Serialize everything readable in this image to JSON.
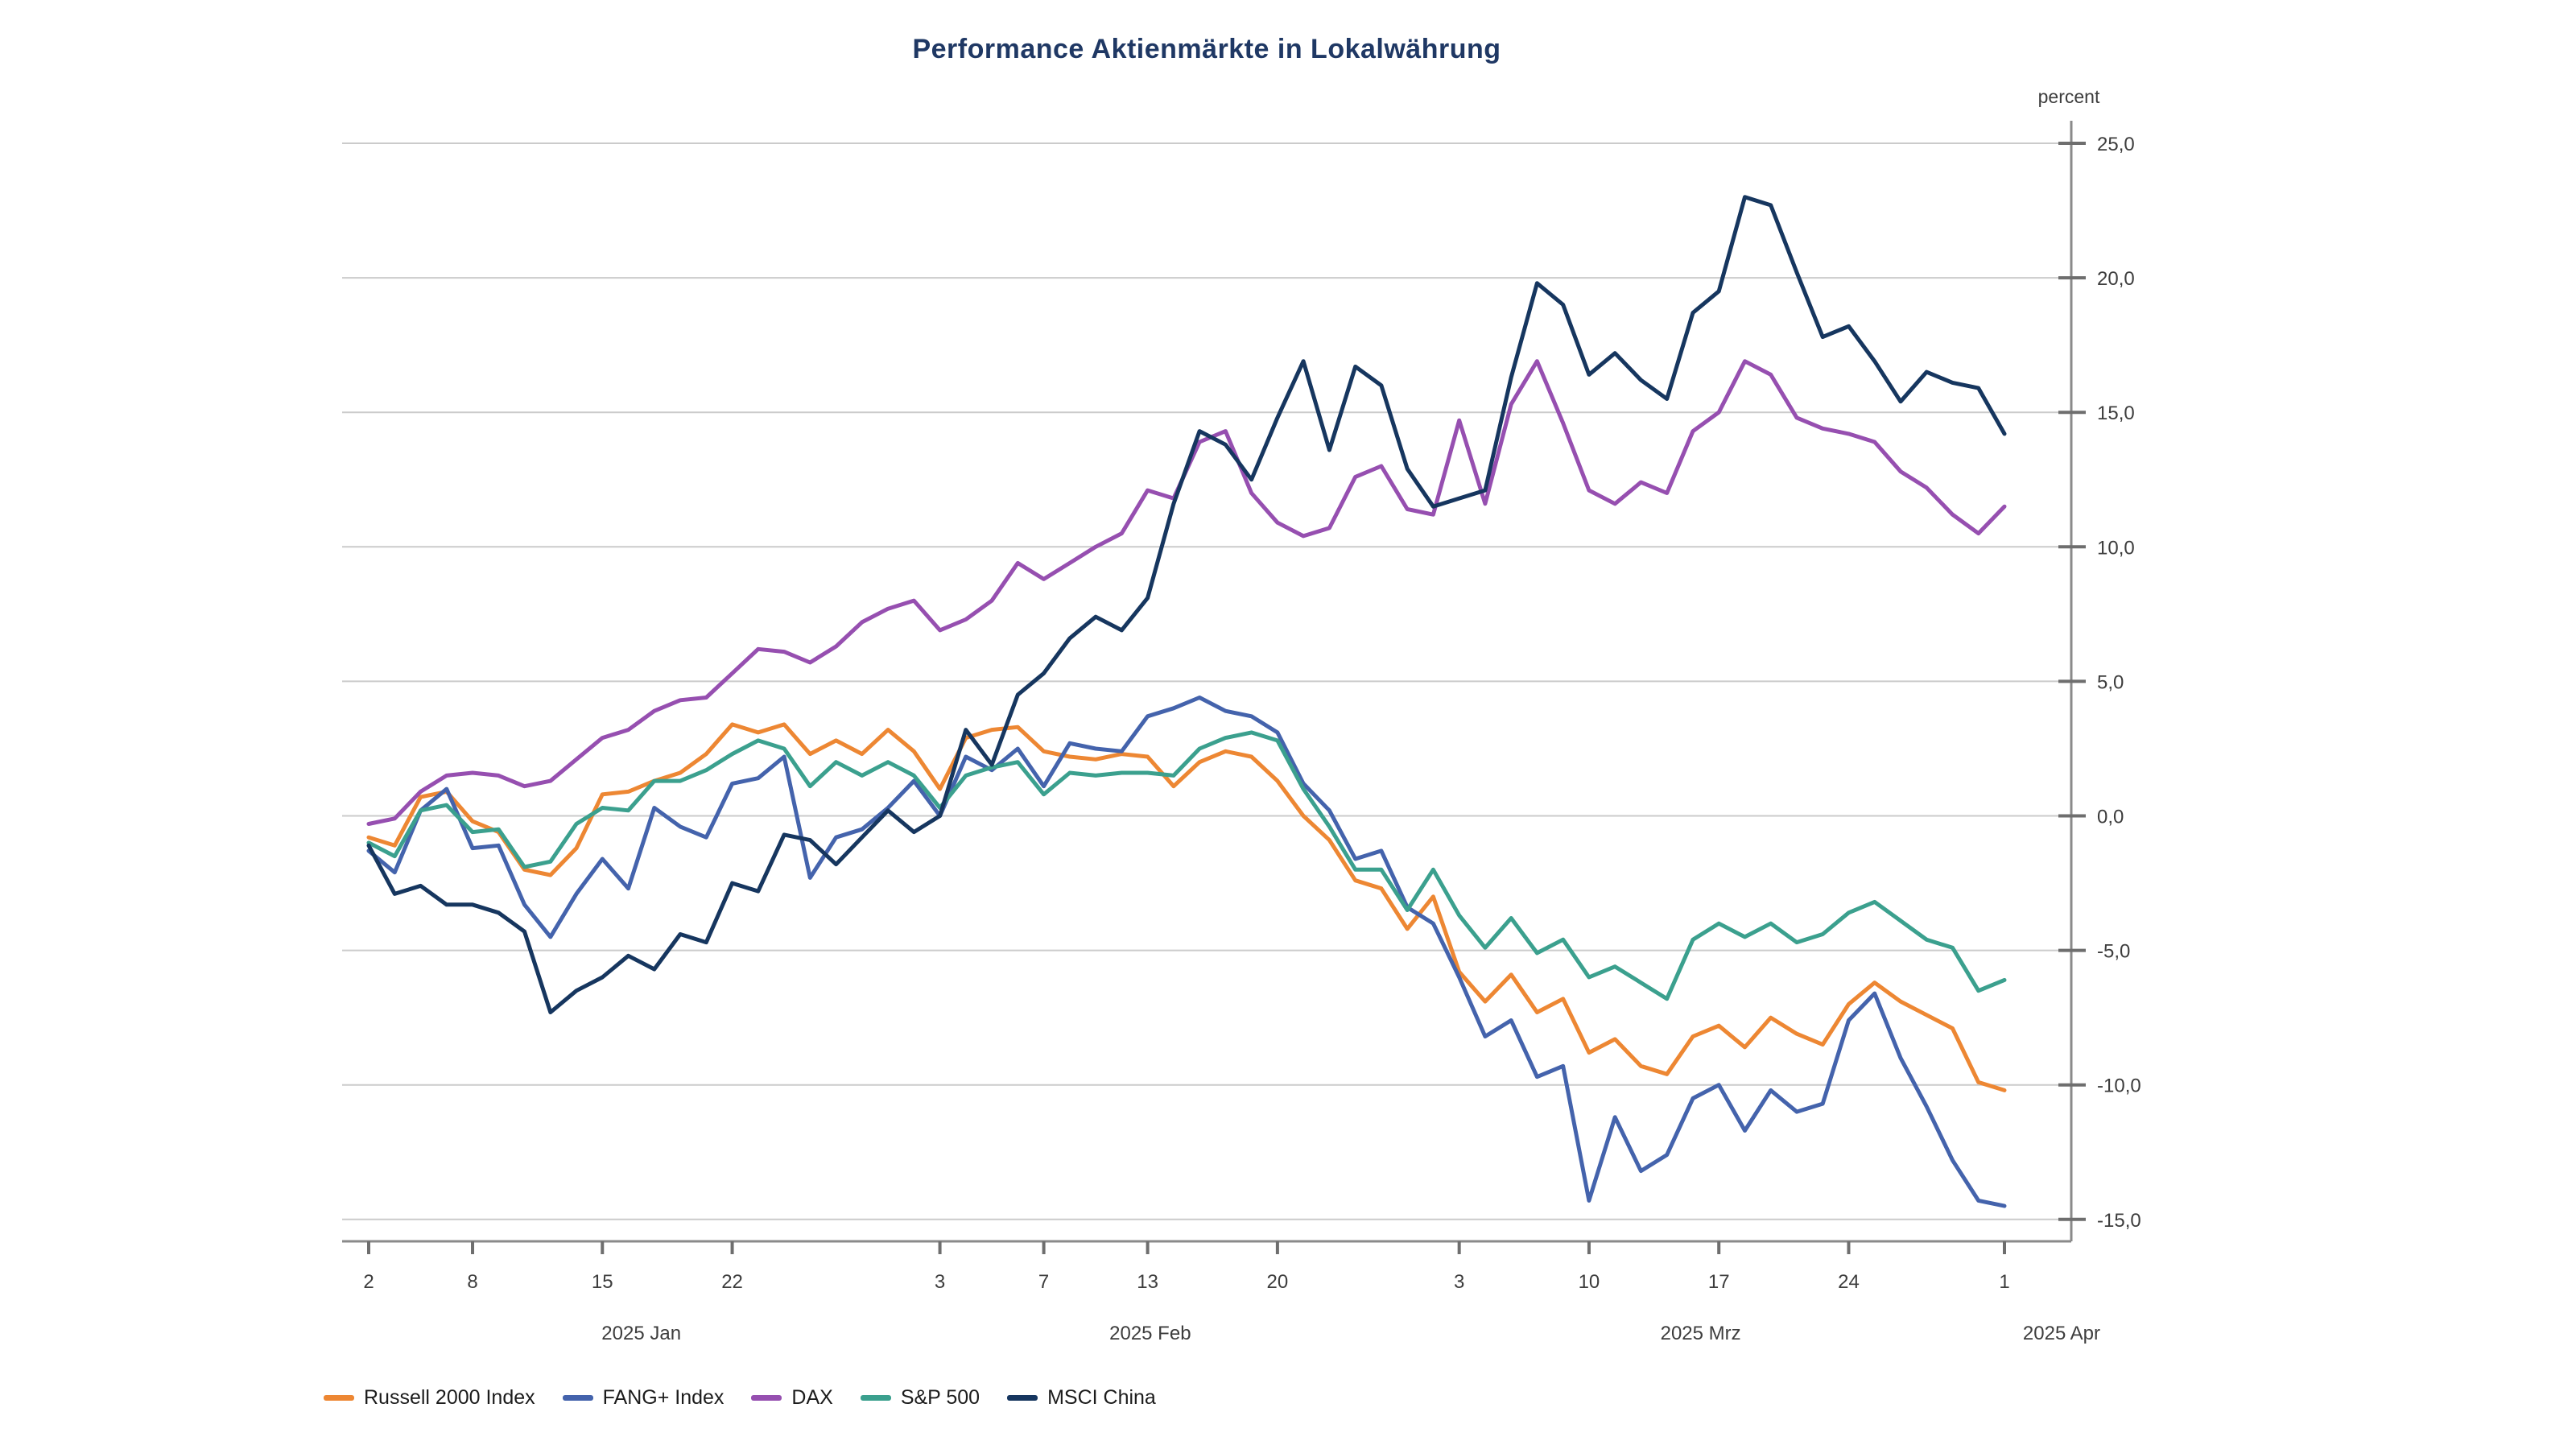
{
  "page": {
    "background": "#FFFFFF"
  },
  "header": {
    "title": "Performance Aktienmärkte in Lokalwährung",
    "title_color": "#1F3864"
  },
  "y_axis": {
    "unit_label": "percent",
    "min": -15,
    "max": 25,
    "step": 5,
    "tick_labels": [
      "25,0",
      "20,0",
      "15,0",
      "10,0",
      "5,0",
      "0,0",
      "-5,0",
      "-10,0",
      "-15,0"
    ]
  },
  "x_axis": {
    "day_ticks": [
      {
        "label": "2",
        "bd": 0
      },
      {
        "label": "8",
        "bd": 4
      },
      {
        "label": "15",
        "bd": 9
      },
      {
        "label": "22",
        "bd": 14
      },
      {
        "label": "3",
        "bd": 22
      },
      {
        "label": "7",
        "bd": 26
      },
      {
        "label": "13",
        "bd": 30
      },
      {
        "label": "20",
        "bd": 35
      },
      {
        "label": "3",
        "bd": 42
      },
      {
        "label": "10",
        "bd": 47
      },
      {
        "label": "17",
        "bd": 52
      },
      {
        "label": "24",
        "bd": 57
      },
      {
        "label": "1",
        "bd": 63
      }
    ],
    "month_labels": [
      {
        "label": "2025 Jan",
        "bd_center": 10.5
      },
      {
        "label": "2025 Feb",
        "bd_center": 30.1
      },
      {
        "label": "2025 Mrz",
        "bd_center": 51.3
      },
      {
        "label": "2025 Apr",
        "bd_center": 65.2
      }
    ]
  },
  "legend": [
    {
      "label": "Russell 2000 Index",
      "color": "#ED8733"
    },
    {
      "label": "FANG+ Index",
      "color": "#4463AC"
    },
    {
      "label": "DAX",
      "color": "#964FB0"
    },
    {
      "label": "S&P 500",
      "color": "#3BA08E"
    },
    {
      "label": "MSCI China",
      "color": "#16365F"
    }
  ],
  "chart_data": {
    "type": "line",
    "title": "Performance Aktienmärkte in Lokalwährung",
    "ylabel": "percent",
    "ylim": [
      -15,
      25
    ],
    "ytick_step": 5,
    "grid": "horizontal",
    "legend_position": "bottom-left",
    "x_unit": "business_days",
    "dates": [
      "2025-01-02",
      "2025-01-03",
      "2025-01-06",
      "2025-01-07",
      "2025-01-08",
      "2025-01-09",
      "2025-01-10",
      "2025-01-13",
      "2025-01-14",
      "2025-01-15",
      "2025-01-16",
      "2025-01-17",
      "2025-01-20",
      "2025-01-21",
      "2025-01-22",
      "2025-01-23",
      "2025-01-24",
      "2025-01-27",
      "2025-01-28",
      "2025-01-29",
      "2025-01-30",
      "2025-01-31",
      "2025-02-03",
      "2025-02-04",
      "2025-02-05",
      "2025-02-06",
      "2025-02-07",
      "2025-02-10",
      "2025-02-11",
      "2025-02-12",
      "2025-02-13",
      "2025-02-14",
      "2025-02-17",
      "2025-02-18",
      "2025-02-19",
      "2025-02-20",
      "2025-02-21",
      "2025-02-24",
      "2025-02-25",
      "2025-02-26",
      "2025-02-27",
      "2025-02-28",
      "2025-03-03",
      "2025-03-04",
      "2025-03-05",
      "2025-03-06",
      "2025-03-07",
      "2025-03-10",
      "2025-03-11",
      "2025-03-12",
      "2025-03-13",
      "2025-03-14",
      "2025-03-17",
      "2025-03-18",
      "2025-03-19",
      "2025-03-20",
      "2025-03-21",
      "2025-03-24",
      "2025-03-25",
      "2025-03-26",
      "2025-03-27",
      "2025-03-28",
      "2025-03-31",
      "2025-04-01"
    ],
    "series": [
      {
        "name": "Russell 2000 Index",
        "color": "#ED8733",
        "values": [
          -0.8,
          -1.1,
          0.7,
          0.9,
          -0.2,
          -0.6,
          -2.0,
          -2.2,
          -1.2,
          0.8,
          0.9,
          1.3,
          1.6,
          2.3,
          3.4,
          3.1,
          3.4,
          2.3,
          2.8,
          2.3,
          3.2,
          2.4,
          1.0,
          2.9,
          3.2,
          3.3,
          2.4,
          2.2,
          2.1,
          2.3,
          2.2,
          1.1,
          2.0,
          2.4,
          2.2,
          1.3,
          0.0,
          -0.9,
          -2.4,
          -2.7,
          -4.2,
          -3.0,
          -5.8,
          -6.9,
          -5.9,
          -7.3,
          -6.8,
          -8.8,
          -8.3,
          -9.3,
          -9.6,
          -8.2,
          -7.8,
          -8.6,
          -7.5,
          -8.1,
          -8.5,
          -7.0,
          -6.2,
          -6.9,
          -7.4,
          -7.9,
          -9.9,
          -10.2
        ]
      },
      {
        "name": "FANG+ Index",
        "color": "#4463AC",
        "values": [
          -1.3,
          -2.1,
          0.2,
          1.0,
          -1.2,
          -1.1,
          -3.3,
          -4.5,
          -2.9,
          -1.6,
          -2.7,
          0.3,
          -0.4,
          -0.8,
          1.2,
          1.4,
          2.2,
          -2.3,
          -0.8,
          -0.5,
          0.3,
          1.3,
          0.0,
          2.2,
          1.7,
          2.5,
          1.1,
          2.7,
          2.5,
          2.4,
          3.7,
          4.0,
          4.4,
          3.9,
          3.7,
          3.1,
          1.2,
          0.2,
          -1.6,
          -1.3,
          -3.4,
          -4.0,
          -6.0,
          -8.2,
          -7.6,
          -9.7,
          -9.3,
          -14.3,
          -11.2,
          -13.2,
          -12.6,
          -10.5,
          -10.0,
          -11.7,
          -10.2,
          -11.0,
          -10.7,
          -7.6,
          -6.6,
          -9.0,
          -10.8,
          -12.8,
          -14.3,
          -14.5
        ]
      },
      {
        "name": "DAX",
        "color": "#964FB0",
        "values": [
          -0.3,
          -0.1,
          0.9,
          1.5,
          1.6,
          1.5,
          1.1,
          1.3,
          2.1,
          2.9,
          3.2,
          3.9,
          4.3,
          4.4,
          5.3,
          6.2,
          6.1,
          5.7,
          6.3,
          7.2,
          7.7,
          8.0,
          6.9,
          7.3,
          8.0,
          9.4,
          8.8,
          9.4,
          10.0,
          10.5,
          12.1,
          11.8,
          13.9,
          14.3,
          12.0,
          10.9,
          10.4,
          10.7,
          12.6,
          13.0,
          11.4,
          11.2,
          14.7,
          11.6,
          15.3,
          16.9,
          14.6,
          12.1,
          11.6,
          12.4,
          12.0,
          14.3,
          15.0,
          16.9,
          16.4,
          14.8,
          14.4,
          14.2,
          13.9,
          12.8,
          12.2,
          11.2,
          10.5,
          11.5
        ]
      },
      {
        "name": "S&P 500",
        "color": "#3BA08E",
        "values": [
          -1.0,
          -1.5,
          0.2,
          0.4,
          -0.6,
          -0.5,
          -1.9,
          -1.7,
          -0.3,
          0.3,
          0.2,
          1.3,
          1.3,
          1.7,
          2.3,
          2.8,
          2.5,
          1.1,
          2.0,
          1.5,
          2.0,
          1.5,
          0.3,
          1.5,
          1.8,
          2.0,
          0.8,
          1.6,
          1.5,
          1.6,
          1.6,
          1.5,
          2.5,
          2.9,
          3.1,
          2.8,
          1.0,
          -0.4,
          -2.0,
          -2.0,
          -3.5,
          -2.0,
          -3.7,
          -4.9,
          -3.8,
          -5.1,
          -4.6,
          -6.0,
          -5.6,
          -6.2,
          -6.8,
          -4.6,
          -4.0,
          -4.5,
          -4.0,
          -4.7,
          -4.4,
          -3.6,
          -3.2,
          -3.9,
          -4.6,
          -4.9,
          -6.5,
          -6.1
        ]
      },
      {
        "name": "MSCI China",
        "color": "#16365F",
        "values": [
          -1.1,
          -2.9,
          -2.6,
          -3.3,
          -3.3,
          -3.6,
          -4.3,
          -7.3,
          -6.5,
          -6.0,
          -5.2,
          -5.7,
          -4.4,
          -4.7,
          -2.5,
          -2.8,
          -0.7,
          -0.9,
          -1.8,
          -0.8,
          0.2,
          -0.6,
          0.0,
          3.2,
          1.9,
          4.5,
          5.3,
          6.6,
          7.4,
          6.9,
          8.1,
          11.6,
          14.3,
          13.8,
          12.5,
          14.8,
          16.9,
          13.6,
          16.7,
          16.0,
          12.9,
          11.5,
          11.8,
          12.1,
          16.3,
          19.8,
          19.0,
          16.4,
          17.2,
          16.2,
          15.5,
          18.7,
          19.5,
          23.0,
          22.7,
          20.2,
          17.8,
          18.2,
          16.9,
          15.4,
          16.5,
          16.1,
          15.9,
          14.2
        ]
      }
    ]
  }
}
